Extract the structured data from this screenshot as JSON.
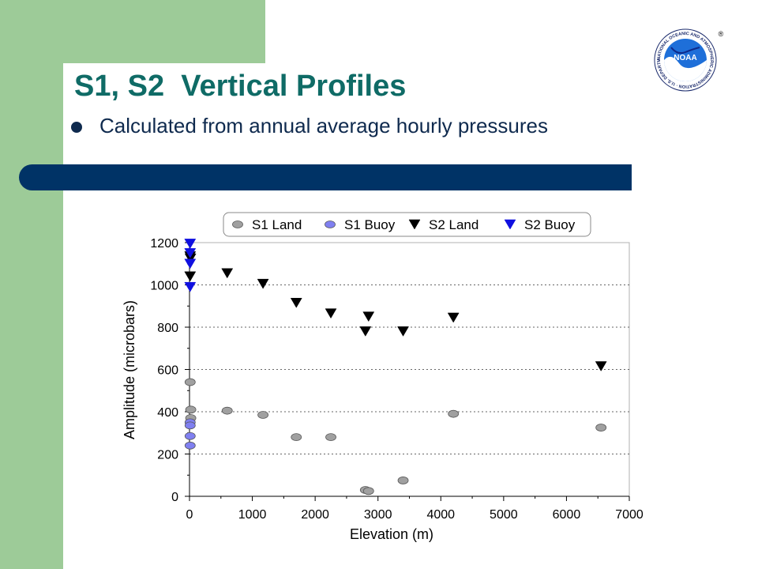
{
  "slide": {
    "title": "S1, S2  Vertical Profiles",
    "bullet": "Calculated from annual average hourly pressures"
  },
  "logo": {
    "text": "NOAA",
    "ring_text": "NATIONAL OCEANIC AND ATMOSPHERIC ADMINISTRATION · U.S. DEPARTMENT OF COMMERCE",
    "registered": "®"
  },
  "colors": {
    "green_band": "#9dcb98",
    "title": "#0f6b66",
    "navy_bar": "#003366",
    "bullet_text": "#0f2a4e"
  },
  "chart_data": {
    "type": "scatter",
    "xlabel": "Elevation (m)",
    "ylabel": "Amplitude (microbars)",
    "xlim": [
      0,
      7000
    ],
    "ylim": [
      0,
      1200
    ],
    "xticks": [
      0,
      1000,
      2000,
      3000,
      4000,
      5000,
      6000,
      7000
    ],
    "yticks": [
      0,
      200,
      400,
      600,
      800,
      1000,
      1200
    ],
    "grid": "horizontal dotted",
    "legend_position": "top",
    "series": [
      {
        "name": "S1 Land",
        "marker": "ellipse",
        "color": "#a0a0a0",
        "points": [
          [
            10,
            540
          ],
          [
            20,
            410
          ],
          [
            20,
            370
          ],
          [
            600,
            405
          ],
          [
            1170,
            385
          ],
          [
            1700,
            280
          ],
          [
            2250,
            280
          ],
          [
            2800,
            30
          ],
          [
            2850,
            25
          ],
          [
            3400,
            75
          ],
          [
            4200,
            390
          ],
          [
            6550,
            325
          ]
        ]
      },
      {
        "name": "S1 Buoy",
        "marker": "ellipse",
        "color": "#8080f0",
        "points": [
          [
            10,
            350
          ],
          [
            10,
            335
          ],
          [
            10,
            285
          ],
          [
            10,
            240
          ]
        ]
      },
      {
        "name": "S2 Land",
        "marker": "triangle-down",
        "color": "#000000",
        "points": [
          [
            10,
            1135
          ],
          [
            15,
            1125
          ],
          [
            10,
            1040
          ],
          [
            600,
            1055
          ],
          [
            1170,
            1005
          ],
          [
            1700,
            915
          ],
          [
            2250,
            865
          ],
          [
            2800,
            780
          ],
          [
            2850,
            850
          ],
          [
            3400,
            780
          ],
          [
            4200,
            845
          ],
          [
            6550,
            615
          ]
        ]
      },
      {
        "name": "S2 Buoy",
        "marker": "triangle-down",
        "color": "#1010e0",
        "points": [
          [
            10,
            1195
          ],
          [
            10,
            1150
          ],
          [
            10,
            1100
          ],
          [
            10,
            990
          ]
        ]
      }
    ]
  }
}
